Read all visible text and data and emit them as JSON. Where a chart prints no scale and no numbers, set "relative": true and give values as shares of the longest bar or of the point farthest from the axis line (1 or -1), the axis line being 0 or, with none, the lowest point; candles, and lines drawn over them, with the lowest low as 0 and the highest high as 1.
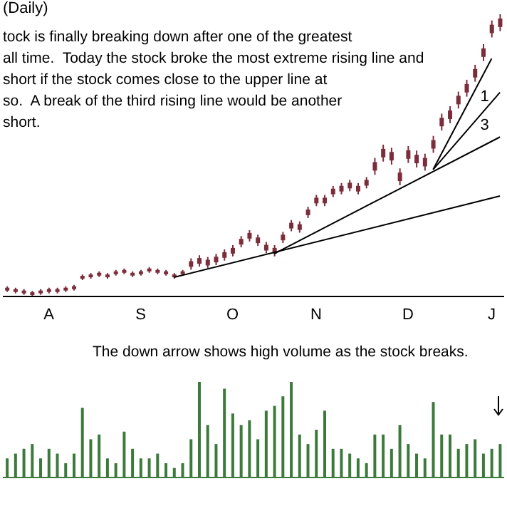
{
  "chart_data": [
    {
      "type": "candlestick",
      "title": "(Daily)",
      "relative": true,
      "color": "#7b2d3b",
      "categories": [
        null,
        null,
        null,
        null,
        null,
        "A",
        null,
        null,
        null,
        null,
        null,
        null,
        null,
        null,
        null,
        null,
        "S",
        null,
        null,
        null,
        null,
        null,
        null,
        null,
        null,
        null,
        null,
        "O",
        null,
        null,
        null,
        null,
        null,
        null,
        null,
        null,
        null,
        "N",
        null,
        null,
        null,
        null,
        null,
        null,
        null,
        null,
        null,
        null,
        "D",
        null,
        null,
        null,
        null,
        null,
        null,
        null,
        null,
        null,
        "J",
        null
      ],
      "ohlc": [
        [
          0.021,
          0.036,
          0.016,
          0.031
        ],
        [
          0.016,
          0.031,
          0.011,
          0.026
        ],
        [
          0.011,
          0.026,
          0.006,
          0.021
        ],
        [
          0.005,
          0.02,
          0,
          0.015
        ],
        [
          0.011,
          0.026,
          0.006,
          0.021
        ],
        [
          0.016,
          0.031,
          0.011,
          0.026
        ],
        [
          0.016,
          0.031,
          0.011,
          0.026
        ],
        [
          0.021,
          0.036,
          0.016,
          0.031
        ],
        [
          0.026,
          0.041,
          0.021,
          0.036
        ],
        [
          0.063,
          0.078,
          0.058,
          0.073
        ],
        [
          0.068,
          0.083,
          0.063,
          0.078
        ],
        [
          0.074,
          0.089,
          0.069,
          0.084
        ],
        [
          0.068,
          0.083,
          0.063,
          0.078
        ],
        [
          0.079,
          0.094,
          0.074,
          0.089
        ],
        [
          0.084,
          0.099,
          0.079,
          0.094
        ],
        [
          0.074,
          0.089,
          0.069,
          0.084
        ],
        [
          0.079,
          0.094,
          0.074,
          0.089
        ],
        [
          0.089,
          0.104,
          0.084,
          0.099
        ],
        [
          0.084,
          0.099,
          0.079,
          0.094
        ],
        [
          0.079,
          0.094,
          0.074,
          0.089
        ],
        [
          0.068,
          0.083,
          0.063,
          0.078
        ],
        [
          0.079,
          0.094,
          0.074,
          0.089
        ],
        [
          0.105,
          0.135,
          0.095,
          0.125
        ],
        [
          0.116,
          0.146,
          0.106,
          0.136
        ],
        [
          0.11,
          0.14,
          0.1,
          0.13
        ],
        [
          0.121,
          0.151,
          0.111,
          0.141
        ],
        [
          0.137,
          0.167,
          0.127,
          0.157
        ],
        [
          0.152,
          0.182,
          0.142,
          0.172
        ],
        [
          0.184,
          0.214,
          0.174,
          0.204
        ],
        [
          0.205,
          0.235,
          0.195,
          0.225
        ],
        [
          0.189,
          0.219,
          0.179,
          0.209
        ],
        [
          0.163,
          0.193,
          0.153,
          0.183
        ],
        [
          0.152,
          0.182,
          0.142,
          0.172
        ],
        [
          0.199,
          0.229,
          0.189,
          0.219
        ],
        [
          0.241,
          0.271,
          0.231,
          0.261
        ],
        [
          0.236,
          0.266,
          0.226,
          0.256
        ],
        [
          0.288,
          0.318,
          0.278,
          0.308
        ],
        [
          0.33,
          0.36,
          0.32,
          0.35
        ],
        [
          0.33,
          0.36,
          0.32,
          0.35
        ],
        [
          0.362,
          0.392,
          0.352,
          0.382
        ],
        [
          0.372,
          0.402,
          0.362,
          0.392
        ],
        [
          0.383,
          0.413,
          0.373,
          0.403
        ],
        [
          0.372,
          0.402,
          0.362,
          0.392
        ],
        [
          0.393,
          0.423,
          0.383,
          0.413
        ],
        [
          0.446,
          0.491,
          0.431,
          0.476
        ],
        [
          0.493,
          0.538,
          0.478,
          0.523
        ],
        [
          0.482,
          0.527,
          0.467,
          0.512
        ],
        [
          0.409,
          0.454,
          0.394,
          0.439
        ],
        [
          0.488,
          0.533,
          0.473,
          0.518
        ],
        [
          0.472,
          0.517,
          0.457,
          0.502
        ],
        [
          0.461,
          0.506,
          0.446,
          0.491
        ],
        [
          0.524,
          0.569,
          0.509,
          0.554
        ],
        [
          0.603,
          0.648,
          0.588,
          0.633
        ],
        [
          0.629,
          0.674,
          0.614,
          0.659
        ],
        [
          0.681,
          0.726,
          0.666,
          0.711
        ],
        [
          0.723,
          0.768,
          0.708,
          0.753
        ],
        [
          0.776,
          0.821,
          0.761,
          0.806
        ],
        [
          0.849,
          0.894,
          0.834,
          0.879
        ],
        [
          0.933,
          0.978,
          0.918,
          0.963
        ],
        [
          0.955,
          1,
          0.94,
          0.985
        ]
      ],
      "series": [
        {
          "type": "line",
          "color": "#000000",
          "values": [
            null,
            null,
            null,
            null,
            null,
            null,
            null,
            null,
            null,
            null,
            null,
            null,
            null,
            null,
            null,
            null,
            null,
            null,
            null,
            null,
            0.068,
            null,
            null,
            null,
            null,
            null,
            null,
            null,
            null,
            null,
            null,
            null,
            null,
            null,
            null,
            null,
            null,
            null,
            null,
            null,
            null,
            null,
            null,
            null,
            null,
            null,
            null,
            null,
            null,
            null,
            null,
            null,
            null,
            null,
            null,
            null,
            null,
            null,
            null,
            0.356
          ]
        },
        {
          "type": "line",
          "color": "#000000",
          "values": [
            null,
            null,
            null,
            null,
            null,
            null,
            null,
            null,
            null,
            null,
            null,
            null,
            null,
            null,
            null,
            null,
            null,
            null,
            null,
            null,
            null,
            null,
            null,
            null,
            null,
            null,
            null,
            null,
            null,
            null,
            null,
            null,
            0.152,
            null,
            null,
            null,
            null,
            null,
            null,
            null,
            null,
            null,
            null,
            null,
            null,
            null,
            null,
            null,
            null,
            null,
            null,
            null,
            null,
            null,
            null,
            null,
            null,
            null,
            null,
            0.565
          ]
        },
        {
          "type": "line",
          "color": "#000000",
          "values": [
            null,
            null,
            null,
            null,
            null,
            null,
            null,
            null,
            null,
            null,
            null,
            null,
            null,
            null,
            null,
            null,
            null,
            null,
            null,
            null,
            null,
            null,
            null,
            null,
            null,
            null,
            null,
            null,
            null,
            null,
            null,
            null,
            null,
            null,
            null,
            null,
            null,
            null,
            null,
            null,
            null,
            null,
            null,
            null,
            null,
            null,
            null,
            null,
            null,
            null,
            null,
            0.45,
            null,
            null,
            null,
            null,
            null,
            null,
            null,
            0.723
          ]
        },
        {
          "type": "line",
          "color": "#000000",
          "values": [
            null,
            null,
            null,
            null,
            null,
            null,
            null,
            null,
            null,
            null,
            null,
            null,
            null,
            null,
            null,
            null,
            null,
            null,
            null,
            null,
            null,
            null,
            null,
            null,
            null,
            null,
            null,
            null,
            null,
            null,
            null,
            null,
            null,
            null,
            null,
            null,
            null,
            null,
            null,
            null,
            null,
            null,
            null,
            null,
            null,
            null,
            null,
            null,
            null,
            null,
            null,
            0.45,
            null,
            null,
            null,
            null,
            null,
            null,
            0.843,
            null
          ]
        }
      ],
      "annotations": [
        "tock is finally breaking down after one of the greatest",
        "all time.  Today the stock broke the most extreme rising line and",
        "short if the stock comes close to the upper line at",
        "so.  A break of the third rising line would be another",
        "short.",
        "1",
        "3"
      ]
    },
    {
      "type": "bar",
      "relative": true,
      "color": "#3c7a3c",
      "categories": [
        null,
        null,
        null,
        null,
        null,
        null,
        null,
        null,
        null,
        null,
        null,
        null,
        null,
        null,
        null,
        null,
        null,
        null,
        null,
        null,
        null,
        null,
        null,
        null,
        null,
        null,
        null,
        null,
        null,
        null,
        null,
        null,
        null,
        null,
        null,
        null,
        null,
        null,
        null,
        null,
        null,
        null,
        null,
        null,
        null,
        null,
        null,
        null,
        null,
        null,
        null,
        null,
        null,
        null,
        null,
        null,
        null,
        null,
        null,
        null
      ],
      "values": [
        0.2,
        0.25,
        0.3,
        0.35,
        0.2,
        0.3,
        0.25,
        0.15,
        0.25,
        0.73,
        0.4,
        0.45,
        0.2,
        0.15,
        0.48,
        0.3,
        0.2,
        0.2,
        0.25,
        0.15,
        0.1,
        0.15,
        0.4,
        1.0,
        0.55,
        0.35,
        0.93,
        0.67,
        0.55,
        0.6,
        0.4,
        0.7,
        0.75,
        0.85,
        1.0,
        0.45,
        0.35,
        0.5,
        0.7,
        0.3,
        0.3,
        0.25,
        0.2,
        0.15,
        0.45,
        0.45,
        0.3,
        0.55,
        0.35,
        0.25,
        0.2,
        0.79,
        0.45,
        0.45,
        0.3,
        0.35,
        0.4,
        0.25,
        0.3,
        0.35
      ],
      "annotations": [
        "The down arrow shows high volume as the stock breaks."
      ]
    }
  ]
}
